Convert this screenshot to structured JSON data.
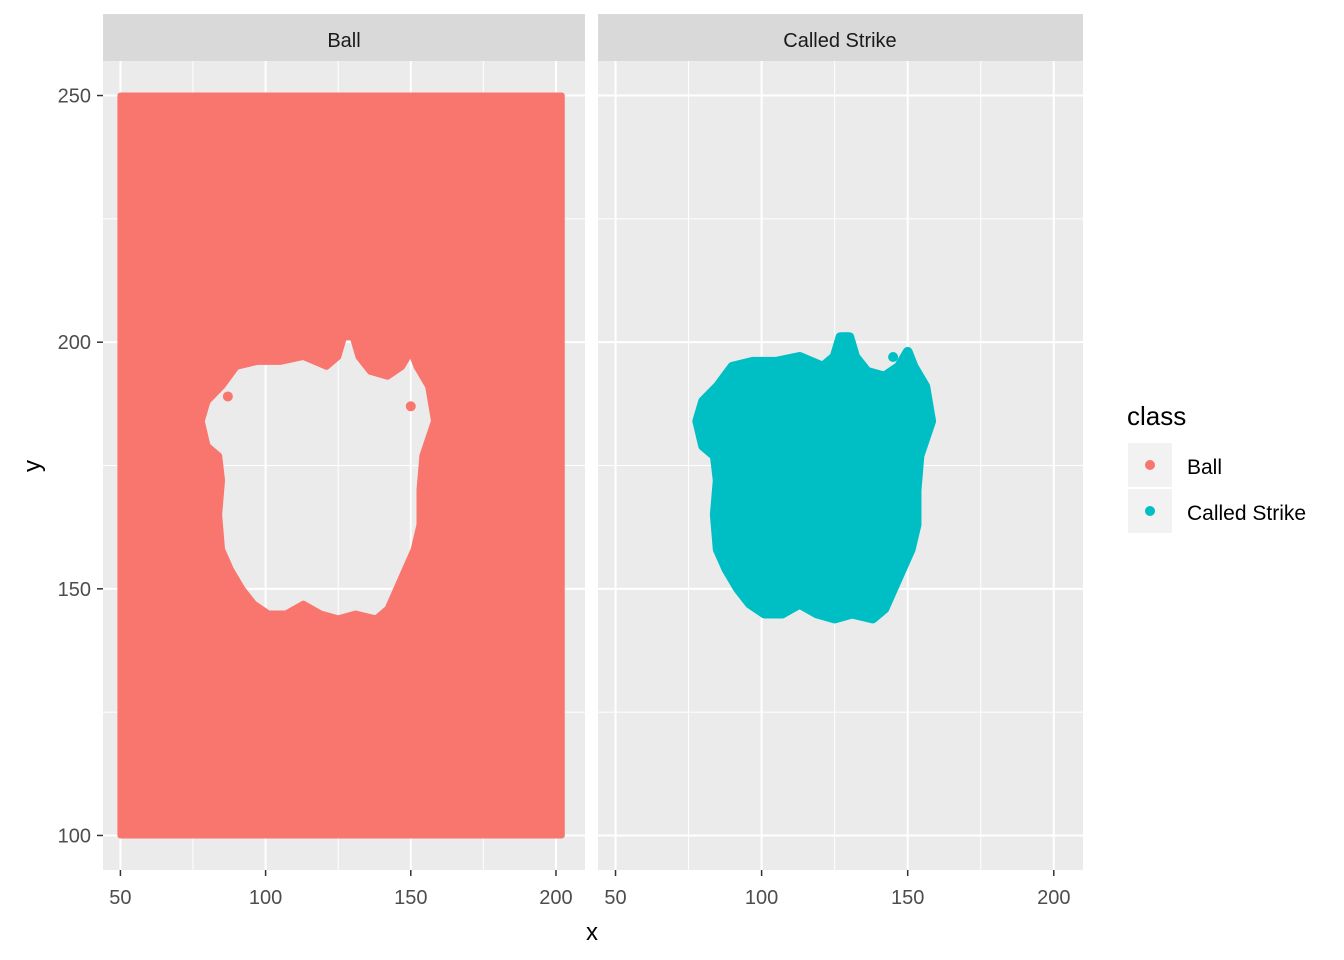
{
  "chart_data": {
    "type": "scatter",
    "facets": [
      "Ball",
      "Called Strike"
    ],
    "xlabel": "x",
    "ylabel": "y",
    "xlim": [
      44,
      210
    ],
    "ylim": [
      93,
      257
    ],
    "x_ticks": [
      50,
      100,
      150,
      200
    ],
    "x_tick_labels": [
      "50",
      "100",
      "150",
      "200"
    ],
    "x_minor_ticks": [
      75,
      125,
      175
    ],
    "y_ticks": [
      100,
      150,
      200,
      250
    ],
    "y_tick_labels": [
      "100",
      "150",
      "200",
      "250"
    ],
    "y_minor_ticks": [
      125,
      175,
      225
    ],
    "grid": true,
    "legend": {
      "title": "class",
      "position": "right",
      "entries": [
        {
          "label": "Ball",
          "color": "#F8766D"
        },
        {
          "label": "Called Strike",
          "color": "#00BFC4"
        }
      ]
    },
    "ball_region": {
      "x_range": [
        50,
        202
      ],
      "y_range": [
        100,
        250
      ]
    },
    "strike_region_outline": [
      [
        78,
        184
      ],
      [
        80,
        179
      ],
      [
        84,
        177
      ],
      [
        85,
        172
      ],
      [
        84,
        165
      ],
      [
        85,
        158
      ],
      [
        88,
        154
      ],
      [
        92,
        150
      ],
      [
        96,
        147
      ],
      [
        101,
        145
      ],
      [
        107,
        145
      ],
      [
        113,
        147
      ],
      [
        119,
        145
      ],
      [
        125,
        144
      ],
      [
        131,
        145
      ],
      [
        138,
        144
      ],
      [
        142,
        146
      ],
      [
        145,
        150
      ],
      [
        148,
        154
      ],
      [
        151,
        158
      ],
      [
        153,
        163
      ],
      [
        153,
        170
      ],
      [
        154,
        177
      ],
      [
        158,
        184
      ],
      [
        156,
        191
      ],
      [
        152,
        195
      ],
      [
        150,
        198
      ],
      [
        147,
        195
      ],
      [
        142,
        193
      ],
      [
        136,
        194
      ],
      [
        132,
        197
      ],
      [
        130,
        201
      ],
      [
        127,
        201
      ],
      [
        125,
        197
      ],
      [
        121,
        195
      ],
      [
        113,
        197
      ],
      [
        105,
        196
      ],
      [
        97,
        196
      ],
      [
        90,
        195
      ],
      [
        85,
        191
      ],
      [
        80,
        188
      ]
    ],
    "strike_spikes": [
      [
        129,
        201
      ],
      [
        133,
        195
      ],
      [
        145,
        197
      ],
      [
        150,
        198
      ]
    ],
    "ball_outliers": [
      [
        87,
        189
      ],
      [
        150,
        187
      ]
    ]
  }
}
